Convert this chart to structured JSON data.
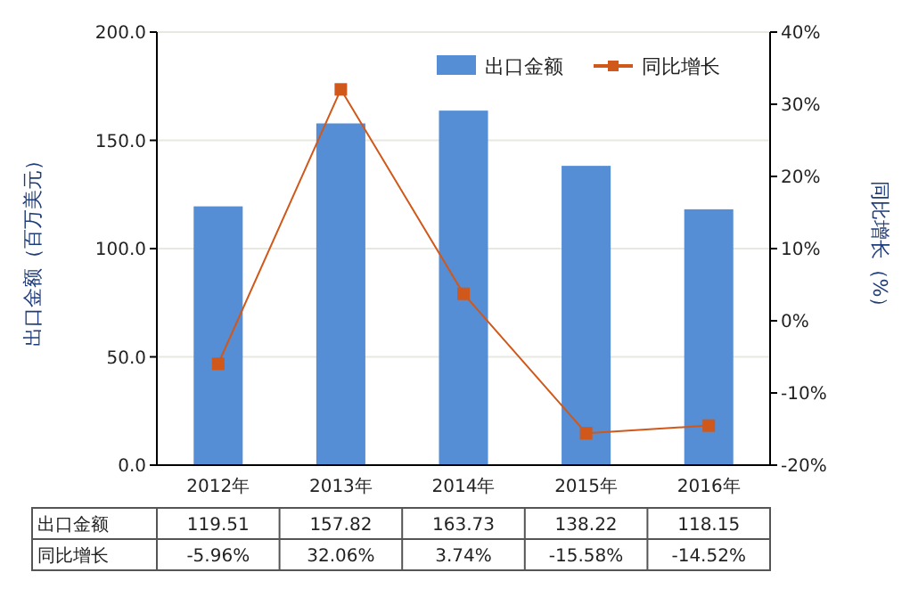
{
  "chart_data": {
    "type": "bar",
    "ylabel": "出口金额（百万美元）",
    "y2label": "同比增长（%）",
    "categories": [
      "2012年",
      "2013年",
      "2014年",
      "2015年",
      "2016年"
    ],
    "series": [
      {
        "name": "出口金额",
        "color": "#558ed5",
        "values": [
          119.51,
          157.82,
          163.73,
          138.22,
          118.15
        ],
        "value_labels": [
          "119.51",
          "157.82",
          "163.73",
          "138.22",
          "118.15"
        ]
      },
      {
        "name": "同比增长",
        "type": "line",
        "axis": "y2",
        "color": "#d0581a",
        "marker": "square",
        "values": [
          -5.96,
          32.06,
          3.74,
          -15.58,
          -14.52
        ],
        "value_labels": [
          "-5.96%",
          "32.06%",
          "3.74%",
          "-15.58%",
          "-14.52%"
        ]
      }
    ],
    "ylim": [
      0,
      200
    ],
    "yticks": [
      {
        "value": 0,
        "label": "0.0"
      },
      {
        "value": 50,
        "label": "50.0"
      },
      {
        "value": 100,
        "label": "100.0"
      },
      {
        "value": 150,
        "label": "150.0"
      },
      {
        "value": 200,
        "label": "200.0"
      }
    ],
    "y2lim": [
      -20,
      40
    ],
    "y2ticks": [
      {
        "value": -20,
        "label": "-20%"
      },
      {
        "value": -10,
        "label": "-10%"
      },
      {
        "value": 0,
        "label": "0%"
      },
      {
        "value": 10,
        "label": "10%"
      },
      {
        "value": 20,
        "label": "20%"
      },
      {
        "value": 30,
        "label": "30%"
      },
      {
        "value": 40,
        "label": "40%"
      }
    ],
    "grid": "y",
    "legend": "top right"
  }
}
